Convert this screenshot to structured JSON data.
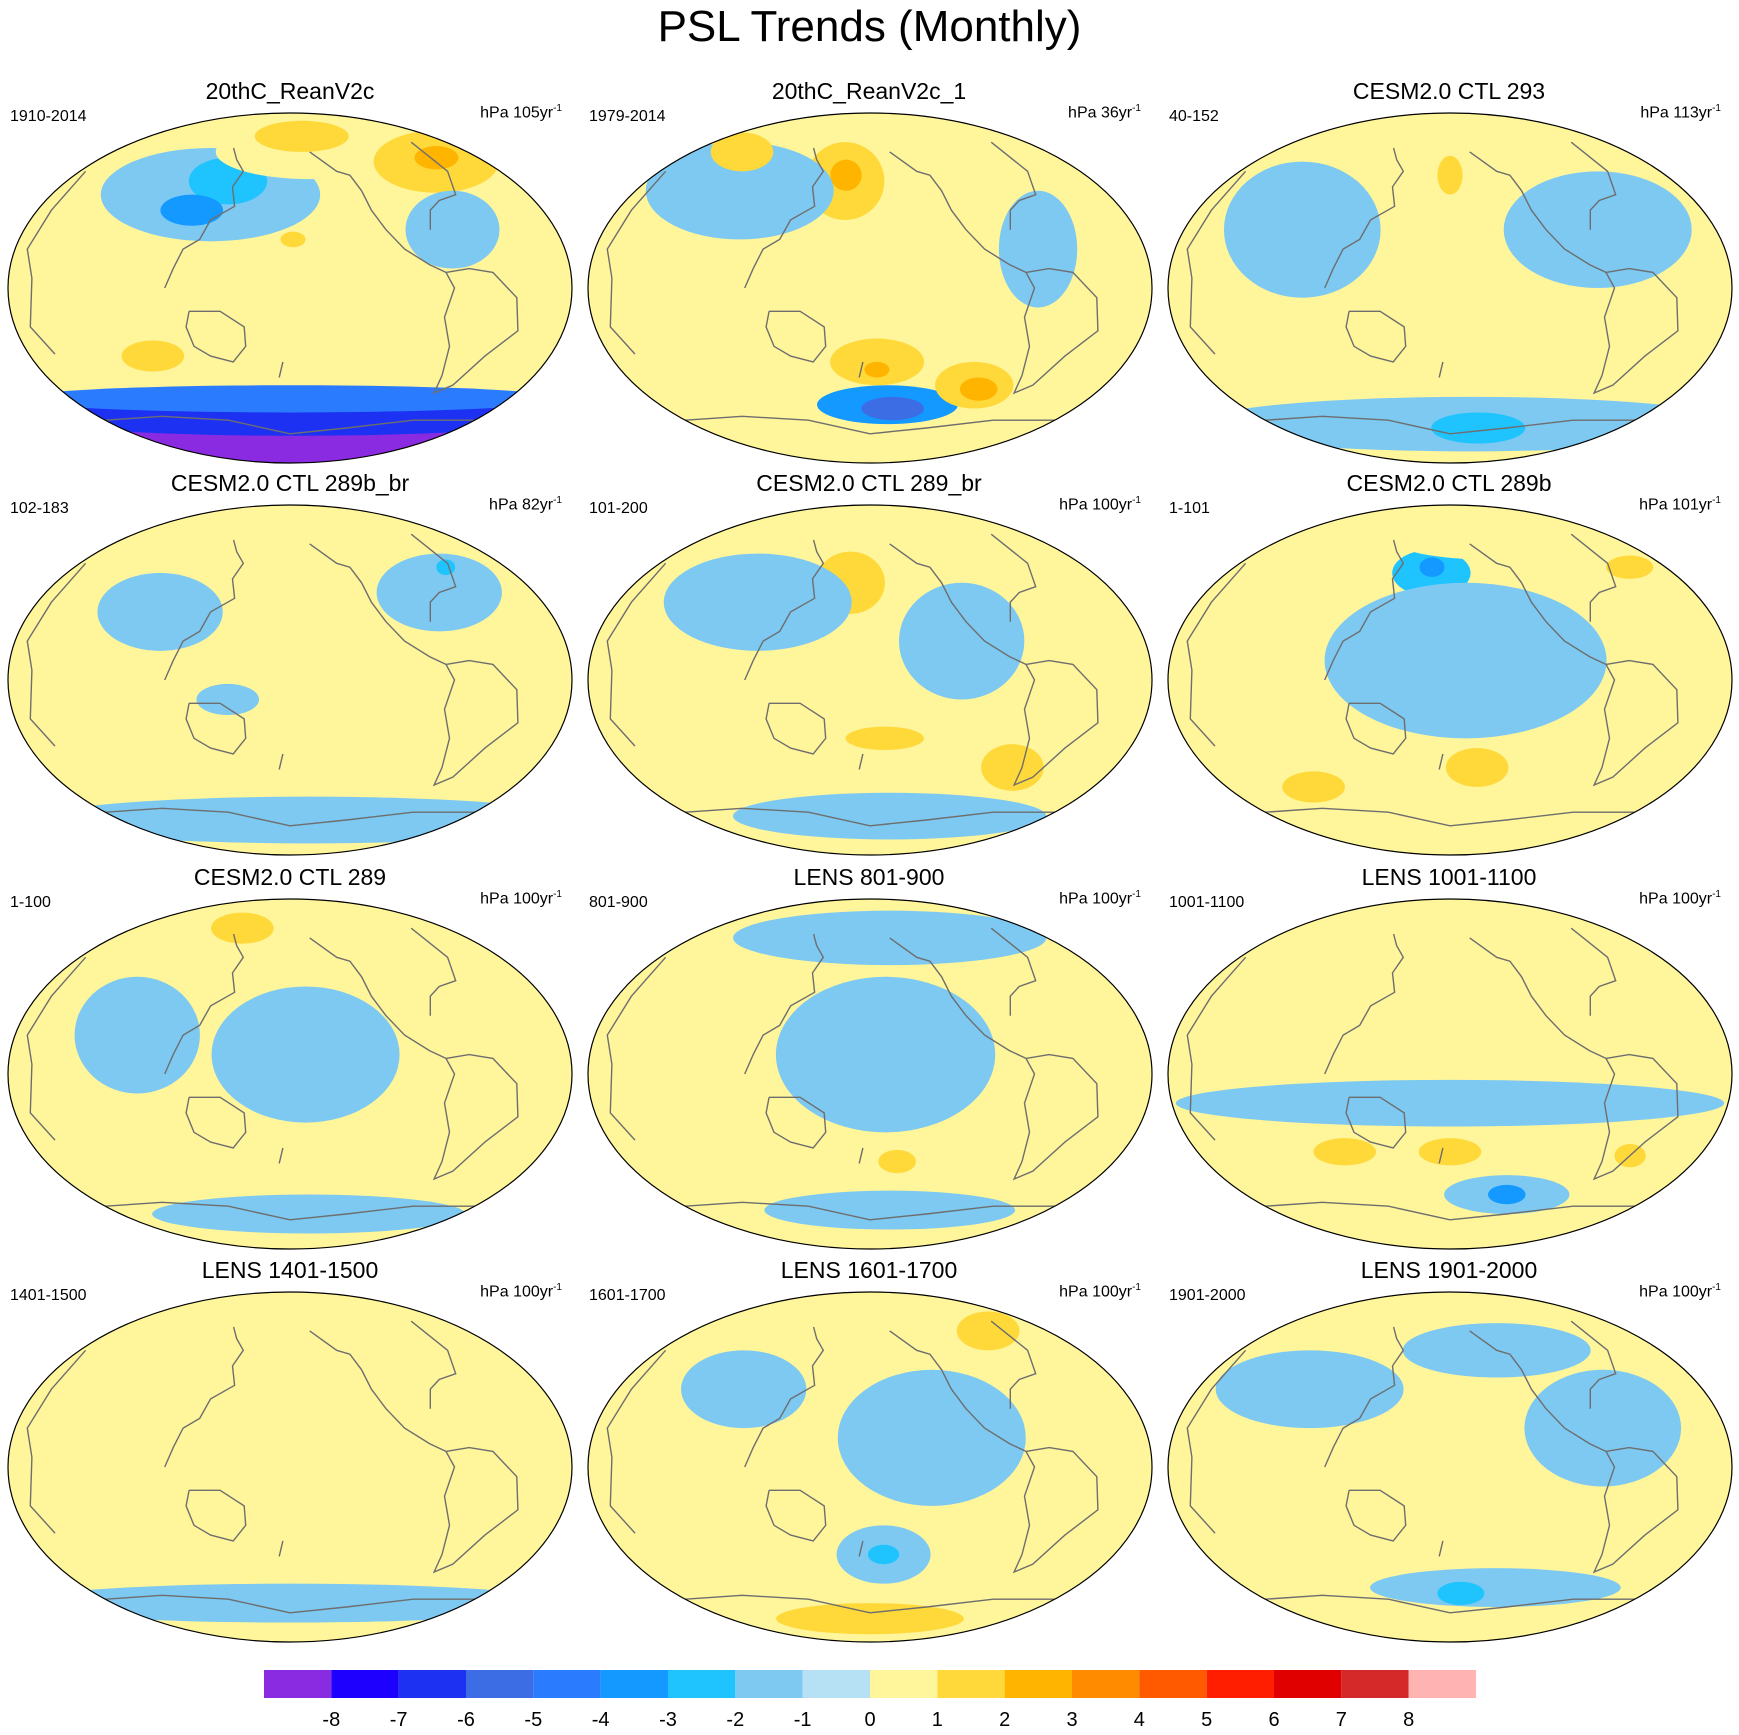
{
  "title": "PSL Trends (Monthly)",
  "panels": [
    {
      "title": "20thC_ReanV2c",
      "period": "1910-2014",
      "units": "hPa 105yr",
      "exp": "-1",
      "blobs": [
        {
          "lon": 0,
          "lat": -78,
          "rx": 175,
          "ry": 14,
          "val": -8
        },
        {
          "lon": 5,
          "lat": -66,
          "rx": 175,
          "ry": 10,
          "val": -6
        },
        {
          "lon": 0,
          "lat": -57,
          "rx": 175,
          "ry": 7,
          "val": -4
        },
        {
          "lon": -60,
          "lat": 48,
          "rx": 70,
          "ry": 24,
          "val": -1
        },
        {
          "lon": -50,
          "lat": 55,
          "rx": 25,
          "ry": 12,
          "val": -2
        },
        {
          "lon": -70,
          "lat": 40,
          "rx": 20,
          "ry": 8,
          "val": -3
        },
        {
          "lon": 20,
          "lat": 70,
          "rx": 60,
          "ry": 14,
          "val": 1
        },
        {
          "lon": 15,
          "lat": 78,
          "rx": 30,
          "ry": 8,
          "val": 2
        },
        {
          "lon": 135,
          "lat": 65,
          "rx": 40,
          "ry": 16,
          "val": 2
        },
        {
          "lon": 140,
          "lat": 67,
          "rx": 14,
          "ry": 6,
          "val": 3
        },
        {
          "lon": -95,
          "lat": -35,
          "rx": 20,
          "ry": 8,
          "val": 2
        },
        {
          "lon": 2,
          "lat": 25,
          "rx": 8,
          "ry": 4,
          "val": 2
        },
        {
          "lon": 110,
          "lat": 30,
          "rx": 30,
          "ry": 20,
          "val": -1
        }
      ]
    },
    {
      "title": "20thC_ReanV2c_1",
      "period": "1979-2014",
      "units": "hPa 36yr",
      "exp": "-1",
      "blobs": [
        {
          "lon": 15,
          "lat": -60,
          "rx": 45,
          "ry": 10,
          "val": -3
        },
        {
          "lon": 20,
          "lat": -62,
          "rx": 20,
          "ry": 6,
          "val": -5
        },
        {
          "lon": -20,
          "lat": 55,
          "rx": 25,
          "ry": 20,
          "val": 2
        },
        {
          "lon": -20,
          "lat": 58,
          "rx": 10,
          "ry": 8,
          "val": 3
        },
        {
          "lon": 5,
          "lat": -38,
          "rx": 30,
          "ry": 12,
          "val": 2
        },
        {
          "lon": 5,
          "lat": -42,
          "rx": 8,
          "ry": 4,
          "val": 3
        },
        {
          "lon": 80,
          "lat": -50,
          "rx": 25,
          "ry": 12,
          "val": 2
        },
        {
          "lon": 85,
          "lat": -52,
          "rx": 12,
          "ry": 6,
          "val": 3
        },
        {
          "lon": -100,
          "lat": 50,
          "rx": 60,
          "ry": 25,
          "val": -1
        },
        {
          "lon": 110,
          "lat": 20,
          "rx": 25,
          "ry": 30,
          "val": -1
        },
        {
          "lon": -130,
          "lat": 70,
          "rx": 20,
          "ry": 10,
          "val": 2
        }
      ]
    },
    {
      "title": "CESM2.0 CTL 293",
      "period": "40-152",
      "units": "hPa 113yr",
      "exp": "-1",
      "blobs": [
        {
          "lon": 20,
          "lat": -70,
          "rx": 175,
          "ry": 14,
          "val": -1
        },
        {
          "lon": 30,
          "lat": -72,
          "rx": 30,
          "ry": 8,
          "val": -2
        },
        {
          "lon": -100,
          "lat": 30,
          "rx": 50,
          "ry": 35,
          "val": -1
        },
        {
          "lon": 100,
          "lat": 30,
          "rx": 60,
          "ry": 30,
          "val": -1
        },
        {
          "lon": 0,
          "lat": 58,
          "rx": 8,
          "ry": 10,
          "val": 2
        }
      ]
    },
    {
      "title": "CESM2.0 CTL 289b_br",
      "period": "102-183",
      "units": "hPa 82yr",
      "exp": "-1",
      "blobs": [
        {
          "lon": -60,
          "lat": 75,
          "rx": 40,
          "ry": 10,
          "val": 1
        },
        {
          "lon": 20,
          "lat": -72,
          "rx": 175,
          "ry": 12,
          "val": -1
        },
        {
          "lon": -90,
          "lat": 35,
          "rx": 40,
          "ry": 20,
          "val": -1
        },
        {
          "lon": 110,
          "lat": 45,
          "rx": 40,
          "ry": 20,
          "val": -1
        },
        {
          "lon": -40,
          "lat": -10,
          "rx": 20,
          "ry": 8,
          "val": -1
        },
        {
          "lon": 130,
          "lat": 58,
          "rx": 6,
          "ry": 4,
          "val": -2
        }
      ]
    },
    {
      "title": "CESM2.0 CTL 289_br",
      "period": "101-200",
      "units": "hPa 100yr",
      "exp": "-1",
      "blobs": [
        {
          "lon": -15,
          "lat": 50,
          "rx": 22,
          "ry": 16,
          "val": 2
        },
        {
          "lon": 105,
          "lat": -45,
          "rx": 20,
          "ry": 12,
          "val": 2
        },
        {
          "lon": 10,
          "lat": -30,
          "rx": 25,
          "ry": 6,
          "val": 2
        },
        {
          "lon": -80,
          "lat": 40,
          "rx": 60,
          "ry": 25,
          "val": -1
        },
        {
          "lon": 60,
          "lat": 20,
          "rx": 40,
          "ry": 30,
          "val": -1
        },
        {
          "lon": 20,
          "lat": -70,
          "rx": 100,
          "ry": 12,
          "val": -1
        }
      ]
    },
    {
      "title": "CESM2.0 CTL 289b",
      "period": "1-101",
      "units": "hPa 101yr",
      "exp": "-1",
      "blobs": [
        {
          "lon": -15,
          "lat": 55,
          "rx": 25,
          "ry": 12,
          "val": -2
        },
        {
          "lon": -15,
          "lat": 58,
          "rx": 8,
          "ry": 5,
          "val": -3
        },
        {
          "lon": 40,
          "lat": 72,
          "rx": 60,
          "ry": 10,
          "val": 1
        },
        {
          "lon": 150,
          "lat": 58,
          "rx": 15,
          "ry": 6,
          "val": 2
        },
        {
          "lon": 20,
          "lat": -45,
          "rx": 20,
          "ry": 10,
          "val": 2
        },
        {
          "lon": -110,
          "lat": -55,
          "rx": 20,
          "ry": 8,
          "val": 2
        },
        {
          "lon": 10,
          "lat": 10,
          "rx": 90,
          "ry": 40,
          "val": -1
        }
      ]
    },
    {
      "title": "CESM2.0 CTL 289",
      "period": "1-100",
      "units": "hPa 100yr",
      "exp": "-1",
      "blobs": [
        {
          "lon": -55,
          "lat": 75,
          "rx": 20,
          "ry": 8,
          "val": 2
        },
        {
          "lon": 10,
          "lat": 10,
          "rx": 60,
          "ry": 35,
          "val": -1
        },
        {
          "lon": -100,
          "lat": 20,
          "rx": 40,
          "ry": 30,
          "val": -1
        },
        {
          "lon": 20,
          "lat": -72,
          "rx": 100,
          "ry": 10,
          "val": -1
        }
      ]
    },
    {
      "title": "LENS 801-900",
      "period": "801-900",
      "units": "hPa 100yr",
      "exp": "-1",
      "blobs": [
        {
          "lon": 20,
          "lat": -45,
          "rx": 12,
          "ry": 6,
          "val": 2
        },
        {
          "lon": 10,
          "lat": 10,
          "rx": 70,
          "ry": 40,
          "val": -1
        },
        {
          "lon": 20,
          "lat": 70,
          "rx": 100,
          "ry": 14,
          "val": -1
        },
        {
          "lon": 20,
          "lat": -70,
          "rx": 80,
          "ry": 10,
          "val": -1
        }
      ]
    },
    {
      "title": "LENS 1001-1100",
      "period": "1001-1100",
      "units": "hPa 100yr",
      "exp": "-1",
      "blobs": [
        {
          "lon": 50,
          "lat": -62,
          "rx": 40,
          "ry": 10,
          "val": -1
        },
        {
          "lon": 50,
          "lat": -62,
          "rx": 12,
          "ry": 5,
          "val": -3
        },
        {
          "lon": -75,
          "lat": -40,
          "rx": 20,
          "ry": 7,
          "val": 2
        },
        {
          "lon": 0,
          "lat": -40,
          "rx": 20,
          "ry": 7,
          "val": 2
        },
        {
          "lon": 130,
          "lat": -42,
          "rx": 10,
          "ry": 6,
          "val": 2
        },
        {
          "lon": -40,
          "lat": 75,
          "rx": 60,
          "ry": 8,
          "val": 1
        },
        {
          "lon": 0,
          "lat": -15,
          "rx": 175,
          "ry": 12,
          "val": -1
        }
      ]
    },
    {
      "title": "LENS 1401-1500",
      "period": "1401-1500",
      "units": "hPa 100yr",
      "exp": "-1",
      "blobs": [
        {
          "lon": -20,
          "lat": 35,
          "rx": 40,
          "ry": 20,
          "val": 1
        },
        {
          "lon": 10,
          "lat": -30,
          "rx": 40,
          "ry": 25,
          "val": 1
        },
        {
          "lon": -100,
          "lat": -30,
          "rx": 20,
          "ry": 15,
          "val": 1
        },
        {
          "lon": 0,
          "lat": -70,
          "rx": 175,
          "ry": 10,
          "val": -1
        }
      ]
    },
    {
      "title": "LENS 1601-1700",
      "period": "1601-1700",
      "units": "hPa 100yr",
      "exp": "-1",
      "blobs": [
        {
          "lon": 10,
          "lat": -45,
          "rx": 30,
          "ry": 15,
          "val": -1
        },
        {
          "lon": 10,
          "lat": -45,
          "rx": 10,
          "ry": 5,
          "val": -2
        },
        {
          "lon": 0,
          "lat": -75,
          "rx": 80,
          "ry": 10,
          "val": 1
        },
        {
          "lon": 0,
          "lat": -78,
          "rx": 60,
          "ry": 8,
          "val": 2
        },
        {
          "lon": 120,
          "lat": 70,
          "rx": 20,
          "ry": 10,
          "val": 2
        },
        {
          "lon": 40,
          "lat": 15,
          "rx": 60,
          "ry": 35,
          "val": -1
        },
        {
          "lon": -90,
          "lat": 40,
          "rx": 40,
          "ry": 20,
          "val": -1
        }
      ]
    },
    {
      "title": "LENS 1901-2000",
      "period": "1901-2000",
      "units": "hPa 100yr",
      "exp": "-1",
      "blobs": [
        {
          "lon": 40,
          "lat": -62,
          "rx": 80,
          "ry": 10,
          "val": -1
        },
        {
          "lon": 10,
          "lat": -65,
          "rx": 15,
          "ry": 6,
          "val": -2
        },
        {
          "lon": -100,
          "lat": 40,
          "rx": 60,
          "ry": 20,
          "val": -1
        },
        {
          "lon": 100,
          "lat": 20,
          "rx": 50,
          "ry": 30,
          "val": -1
        },
        {
          "lon": 40,
          "lat": 60,
          "rx": 60,
          "ry": 14,
          "val": -1
        }
      ]
    }
  ],
  "colorbar": {
    "colors": [
      "#8a2be2",
      "#1e00ff",
      "#1d31f3",
      "#3c6de4",
      "#2b7bff",
      "#1399ff",
      "#1fc4ff",
      "#7dc9f2",
      "#b6e0f4",
      "#fff59b",
      "#ffd93a",
      "#ffb400",
      "#ff8c00",
      "#ff5a00",
      "#ff1e00",
      "#e00000",
      "#d52828",
      "#ffb3b3"
    ],
    "labels": [
      "-8",
      "-7",
      "-6",
      "-5",
      "-4",
      "-3",
      "-2",
      "-1",
      "0",
      "1",
      "2",
      "3",
      "4",
      "5",
      "6",
      "7",
      "8"
    ]
  }
}
